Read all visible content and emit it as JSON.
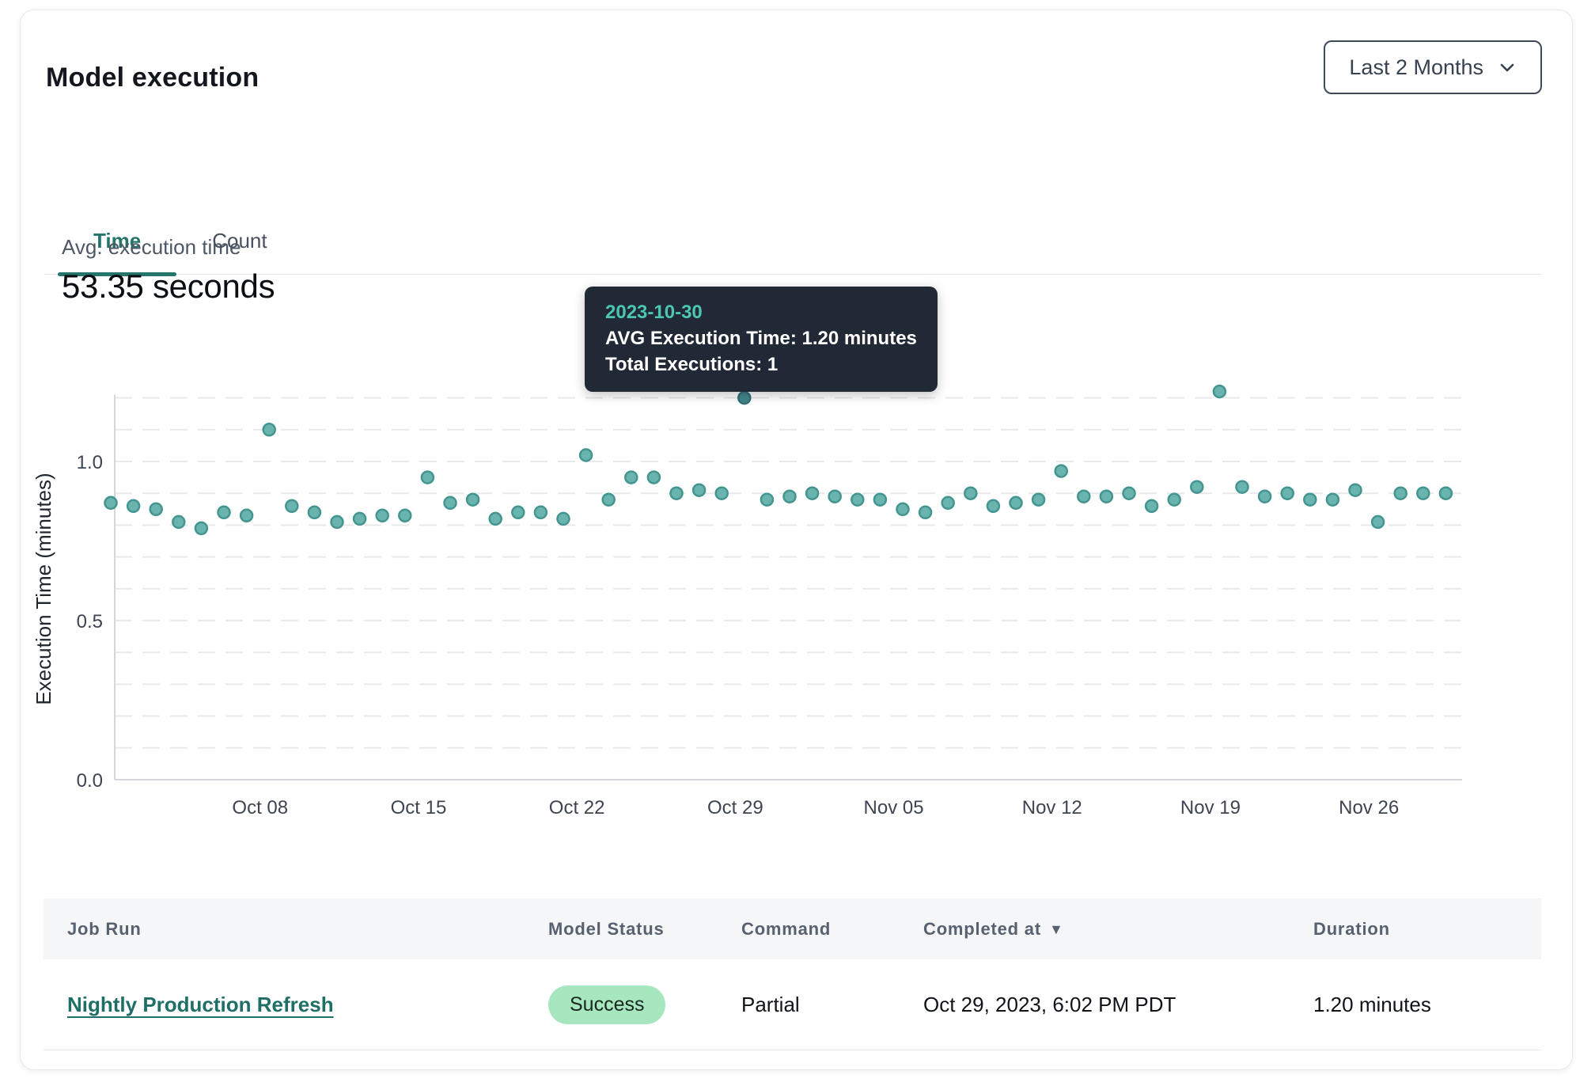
{
  "card": {
    "title": "Model execution"
  },
  "period_selector": {
    "label": "Last 2 Months",
    "icon": "chevron-down-icon"
  },
  "tabs": {
    "time": "Time",
    "count": "Count",
    "active": "Time"
  },
  "stat": {
    "label": "Avg. execution time",
    "value": "53.35 seconds"
  },
  "tooltip": {
    "date": "2023-10-30",
    "avg_line": "AVG Execution Time: 1.20 minutes",
    "total_line": "Total Executions: 1"
  },
  "colors": {
    "accent_teal": "#26756c",
    "point_fill": "#6ab4af",
    "point_stroke": "#44958f",
    "point_highlight_fill": "#45858a",
    "point_highlight_stroke": "#2f7077",
    "tooltip_bg": "#222936",
    "tooltip_accent": "#4cc6b2",
    "badge_success_bg": "#a7e7bf",
    "link": "#1f6f66"
  },
  "chart_data": {
    "type": "scatter",
    "title": "",
    "xlabel": "",
    "ylabel": "Execution Time (minutes)",
    "ylim": [
      0,
      1.25
    ],
    "grid": "horizontal-dashed",
    "grid_minor_step": 0.1,
    "legend": "none",
    "yticks": [
      {
        "v": 0.0,
        "label": "0.0"
      },
      {
        "v": 0.5,
        "label": "0.5"
      },
      {
        "v": 1.0,
        "label": "1.0"
      }
    ],
    "xticks": [
      {
        "label": "Oct 08",
        "d": 6.6
      },
      {
        "label": "Oct 15",
        "d": 13.6
      },
      {
        "label": "Oct 22",
        "d": 20.6
      },
      {
        "label": "Oct 29",
        "d": 27.6
      },
      {
        "label": "Nov 05",
        "d": 34.6
      },
      {
        "label": "Nov 12",
        "d": 41.6
      },
      {
        "label": "Nov 19",
        "d": 48.6
      },
      {
        "label": "Nov 26",
        "d": 55.6
      }
    ],
    "points": [
      {
        "date": "2023-10-02",
        "value": 0.87
      },
      {
        "date": "2023-10-03",
        "value": 0.86
      },
      {
        "date": "2023-10-04",
        "value": 0.85
      },
      {
        "date": "2023-10-05",
        "value": 0.81
      },
      {
        "date": "2023-10-06",
        "value": 0.79
      },
      {
        "date": "2023-10-07",
        "value": 0.84
      },
      {
        "date": "2023-10-08",
        "value": 0.83
      },
      {
        "date": "2023-10-09",
        "value": 1.1
      },
      {
        "date": "2023-10-10",
        "value": 0.86
      },
      {
        "date": "2023-10-11",
        "value": 0.84
      },
      {
        "date": "2023-10-12",
        "value": 0.81
      },
      {
        "date": "2023-10-13",
        "value": 0.82
      },
      {
        "date": "2023-10-14",
        "value": 0.83
      },
      {
        "date": "2023-10-15",
        "value": 0.83
      },
      {
        "date": "2023-10-16",
        "value": 0.95
      },
      {
        "date": "2023-10-17",
        "value": 0.87
      },
      {
        "date": "2023-10-18",
        "value": 0.88
      },
      {
        "date": "2023-10-19",
        "value": 0.82
      },
      {
        "date": "2023-10-20",
        "value": 0.84
      },
      {
        "date": "2023-10-21",
        "value": 0.84
      },
      {
        "date": "2023-10-22",
        "value": 0.82
      },
      {
        "date": "2023-10-23",
        "value": 1.02
      },
      {
        "date": "2023-10-24",
        "value": 0.88
      },
      {
        "date": "2023-10-25",
        "value": 0.95
      },
      {
        "date": "2023-10-26",
        "value": 0.95
      },
      {
        "date": "2023-10-27",
        "value": 0.9
      },
      {
        "date": "2023-10-28",
        "value": 0.91
      },
      {
        "date": "2023-10-29",
        "value": 0.9
      },
      {
        "date": "2023-10-30",
        "value": 1.2,
        "highlighted": true
      },
      {
        "date": "2023-10-31",
        "value": 0.88
      },
      {
        "date": "2023-11-01",
        "value": 0.89
      },
      {
        "date": "2023-11-02",
        "value": 0.9
      },
      {
        "date": "2023-11-03",
        "value": 0.89
      },
      {
        "date": "2023-11-04",
        "value": 0.88
      },
      {
        "date": "2023-11-05",
        "value": 0.88
      },
      {
        "date": "2023-11-06",
        "value": 0.85
      },
      {
        "date": "2023-11-07",
        "value": 0.84
      },
      {
        "date": "2023-11-08",
        "value": 0.87
      },
      {
        "date": "2023-11-09",
        "value": 0.9
      },
      {
        "date": "2023-11-10",
        "value": 0.86
      },
      {
        "date": "2023-11-11",
        "value": 0.87
      },
      {
        "date": "2023-11-12",
        "value": 0.88
      },
      {
        "date": "2023-11-13",
        "value": 0.97
      },
      {
        "date": "2023-11-14",
        "value": 0.89
      },
      {
        "date": "2023-11-15",
        "value": 0.89
      },
      {
        "date": "2023-11-16",
        "value": 0.9
      },
      {
        "date": "2023-11-17",
        "value": 0.86
      },
      {
        "date": "2023-11-18",
        "value": 0.88
      },
      {
        "date": "2023-11-19",
        "value": 0.92
      },
      {
        "date": "2023-11-20",
        "value": 1.22
      },
      {
        "date": "2023-11-21",
        "value": 0.92
      },
      {
        "date": "2023-11-22",
        "value": 0.89
      },
      {
        "date": "2023-11-23",
        "value": 0.9
      },
      {
        "date": "2023-11-24",
        "value": 0.88
      },
      {
        "date": "2023-11-25",
        "value": 0.88
      },
      {
        "date": "2023-11-26",
        "value": 0.91
      },
      {
        "date": "2023-11-27",
        "value": 0.81
      },
      {
        "date": "2023-11-28",
        "value": 0.9
      },
      {
        "date": "2023-11-29",
        "value": 0.9
      },
      {
        "date": "2023-11-30",
        "value": 0.9
      }
    ]
  },
  "table": {
    "columns": [
      {
        "label": "Job Run"
      },
      {
        "label": "Model Status"
      },
      {
        "label": "Command"
      },
      {
        "label": "Completed at",
        "sorted": "desc"
      },
      {
        "label": "Duration"
      }
    ],
    "rows": [
      {
        "job_run": "Nightly Production Refresh",
        "model_status": "Success",
        "command": "Partial",
        "completed_at": "Oct 29, 2023, 6:02 PM PDT",
        "duration": "1.20 minutes"
      }
    ]
  }
}
